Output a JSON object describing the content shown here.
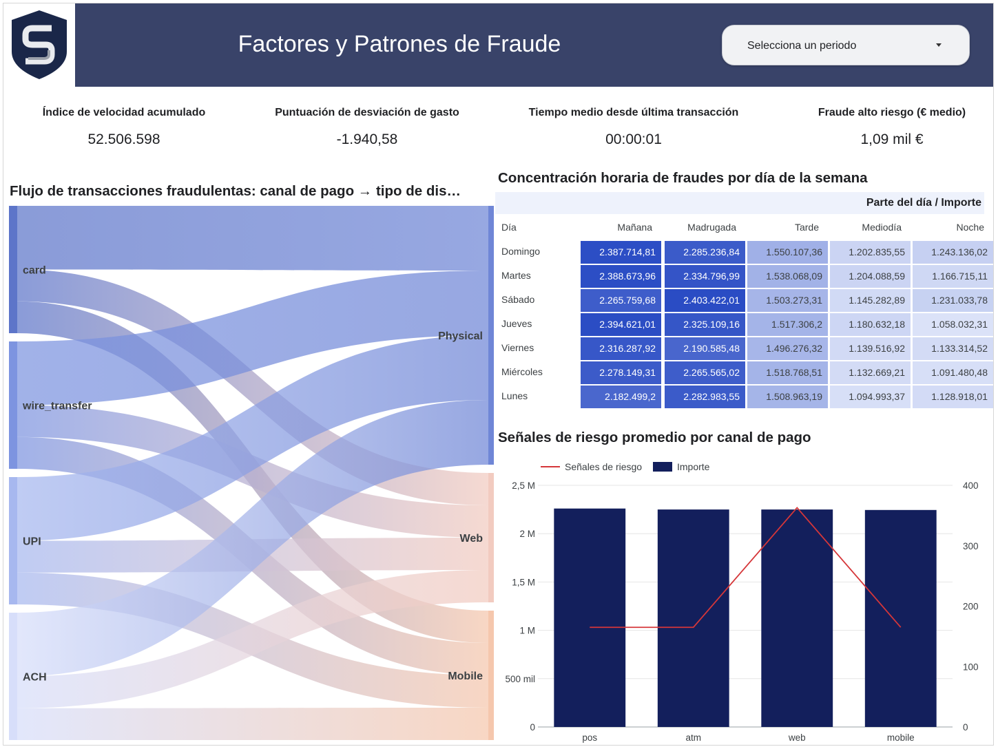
{
  "header": {
    "title": "Factores y Patrones de Fraude",
    "period_placeholder": "Selecciona un periodo",
    "logo_icon": "shield-s-logo-icon"
  },
  "kpis": [
    {
      "label": "Índice de velocidad acumulado",
      "value": "52.506.598"
    },
    {
      "label": "Puntuación de desviación de gasto",
      "value": "-1.940,58"
    },
    {
      "label": "Tiempo medio desde última transacción",
      "value": "00:00:01"
    },
    {
      "label": "Fraude alto riesgo (€ medio)",
      "value": "1,09 mil €"
    }
  ],
  "sankey": {
    "title": "Flujo de transacciones fraudulentas: canal de pago → tipo de dis…"
  },
  "heatmap": {
    "title": "Concentración horaria de fraudes por día de la semana",
    "header": "Parte del día / Importe",
    "row_header": "Día",
    "columns": [
      "Mañana",
      "Madrugada",
      "Tarde",
      "Mediodía",
      "Noche"
    ],
    "rows": [
      {
        "day": "Domingo",
        "cells": [
          "2.387.714,81",
          "2.285.236,84",
          "1.550.107,36",
          "1.202.835,55",
          "1.243.136,02"
        ]
      },
      {
        "day": "Martes",
        "cells": [
          "2.388.673,96",
          "2.334.796,99",
          "1.538.068,09",
          "1.204.088,59",
          "1.166.715,11"
        ]
      },
      {
        "day": "Sábado",
        "cells": [
          "2.265.759,68",
          "2.403.422,01",
          "1.503.273,31",
          "1.145.282,89",
          "1.231.033,78"
        ]
      },
      {
        "day": "Jueves",
        "cells": [
          "2.394.621,01",
          "2.325.109,16",
          "1.517.306,2",
          "1.180.632,18",
          "1.058.032,31"
        ]
      },
      {
        "day": "Viernes",
        "cells": [
          "2.316.287,92",
          "2.190.585,48",
          "1.496.276,32",
          "1.139.516,92",
          "1.133.314,52"
        ]
      },
      {
        "day": "Miércoles",
        "cells": [
          "2.278.149,31",
          "2.265.565,02",
          "1.518.768,51",
          "1.132.669,21",
          "1.091.480,48"
        ]
      },
      {
        "day": "Lunes",
        "cells": [
          "2.182.499,2",
          "2.282.983,55",
          "1.508.963,19",
          "1.094.993,37",
          "1.128.918,01"
        ]
      }
    ]
  },
  "combo": {
    "title": "Señales de riesgo promedio por canal de pago"
  },
  "chart_data": [
    {
      "type": "sankey",
      "title": "Flujo de transacciones fraudulentas: canal de pago → tipo de dis…",
      "sources": [
        "card",
        "wire_transfer",
        "UPI",
        "ACH"
      ],
      "targets": [
        "Physical",
        "Web",
        "Mobile"
      ],
      "links": [
        {
          "source": "card",
          "target": "Physical",
          "value": 50
        },
        {
          "source": "card",
          "target": "Web",
          "value": 25
        },
        {
          "source": "card",
          "target": "Mobile",
          "value": 25
        },
        {
          "source": "wire_transfer",
          "target": "Physical",
          "value": 50
        },
        {
          "source": "wire_transfer",
          "target": "Web",
          "value": 25
        },
        {
          "source": "wire_transfer",
          "target": "Mobile",
          "value": 25
        },
        {
          "source": "UPI",
          "target": "Physical",
          "value": 50
        },
        {
          "source": "UPI",
          "target": "Web",
          "value": 25
        },
        {
          "source": "UPI",
          "target": "Mobile",
          "value": 25
        },
        {
          "source": "ACH",
          "target": "Physical",
          "value": 50
        },
        {
          "source": "ACH",
          "target": "Web",
          "value": 25
        },
        {
          "source": "ACH",
          "target": "Mobile",
          "value": 25
        }
      ],
      "colors": {
        "source_start": "#5b74c9",
        "target_web": "#f4c9b8",
        "target_mobile": "#f7c8ad"
      }
    },
    {
      "type": "heatmap",
      "title": "Concentración horaria de fraudes por día de la semana",
      "xlabel": "Parte del día / Importe",
      "ylabel": "Día",
      "x": [
        "Mañana",
        "Madrugada",
        "Tarde",
        "Mediodía",
        "Noche"
      ],
      "y": [
        "Domingo",
        "Martes",
        "Sábado",
        "Jueves",
        "Viernes",
        "Miércoles",
        "Lunes"
      ],
      "values": [
        [
          2387714.81,
          2285236.84,
          1550107.36,
          1202835.55,
          1243136.02
        ],
        [
          2388673.96,
          2334796.99,
          1538068.09,
          1204088.59,
          1166715.11
        ],
        [
          2265759.68,
          2403422.01,
          1503273.31,
          1145282.89,
          1231033.78
        ],
        [
          2394621.01,
          2325109.16,
          1517306.2,
          1180632.18,
          1058032.31
        ],
        [
          2316287.92,
          2190585.48,
          1496276.32,
          1139516.92,
          1133314.52
        ],
        [
          2278149.31,
          2265565.02,
          1518768.51,
          1132669.21,
          1091480.48
        ],
        [
          2182499.2,
          2282983.55,
          1508963.19,
          1094993.37,
          1128918.01
        ]
      ],
      "colors": {
        "low": "#eef1fb",
        "high": "#2548c2"
      }
    },
    {
      "type": "bar",
      "title": "Señales de riesgo promedio por canal de pago",
      "categories": [
        "pos",
        "atm",
        "web",
        "mobile"
      ],
      "series": [
        {
          "name": "Importe",
          "kind": "bar",
          "axis": "left",
          "color": "#131f5c",
          "values": [
            2260000,
            2250000,
            2250000,
            2245000
          ]
        },
        {
          "name": "Señales de riesgo",
          "kind": "line",
          "axis": "right",
          "color": "#d53639",
          "values": [
            165,
            165,
            363,
            165
          ]
        }
      ],
      "ylim": [
        0,
        2500000
      ],
      "y_ticks": [
        "0",
        "500 mil",
        "1 M",
        "1,5 M",
        "2 M",
        "2,5 M"
      ],
      "y2lim": [
        0,
        400
      ],
      "y2_ticks": [
        "0",
        "100",
        "200",
        "300",
        "400"
      ],
      "legend": "top-left",
      "grid": true
    }
  ]
}
